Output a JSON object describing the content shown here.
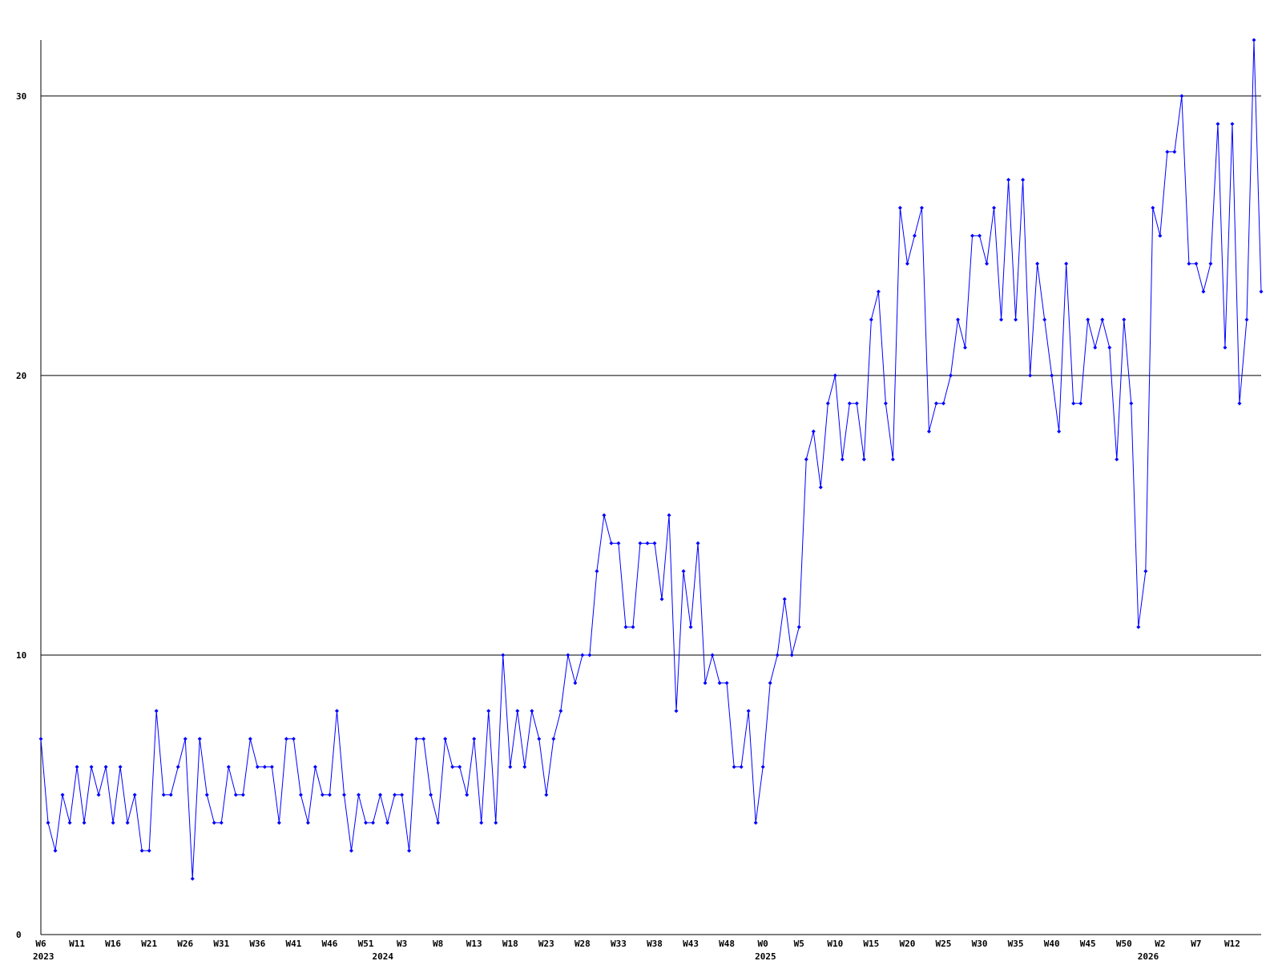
{
  "chart_data": {
    "type": "line",
    "categories": [
      "W6",
      null,
      null,
      null,
      null,
      "W11",
      null,
      null,
      null,
      null,
      "W16",
      null,
      null,
      null,
      null,
      "W21",
      null,
      null,
      null,
      null,
      "W26",
      null,
      null,
      null,
      null,
      "W31",
      null,
      null,
      null,
      null,
      "W36",
      null,
      null,
      null,
      null,
      "W41",
      null,
      null,
      null,
      null,
      "W46",
      null,
      null,
      null,
      null,
      "W51",
      null,
      null,
      null,
      null,
      "W3",
      null,
      null,
      null,
      null,
      "W8",
      null,
      null,
      null,
      null,
      "W13",
      null,
      null,
      null,
      null,
      "W18",
      null,
      null,
      null,
      null,
      "W23",
      null,
      null,
      null,
      null,
      "W28",
      null,
      null,
      null,
      null,
      "W33",
      null,
      null,
      null,
      null,
      "W38",
      null,
      null,
      null,
      null,
      "W43",
      null,
      null,
      null,
      null,
      "W48",
      null,
      null,
      null,
      null,
      "W0",
      null,
      null,
      null,
      null,
      "W5",
      null,
      null,
      null,
      null,
      "W10",
      null,
      null,
      null,
      null,
      "W15",
      null,
      null,
      null,
      null,
      "W20",
      null,
      null,
      null,
      null,
      "W25",
      null,
      null,
      null,
      null,
      "W30",
      null,
      null,
      null,
      null,
      "W35",
      null,
      null,
      null,
      null,
      "W40",
      null,
      null,
      null,
      null,
      "W45",
      null,
      null,
      null,
      null,
      "W50",
      null,
      null,
      null,
      null,
      "W2",
      null,
      null,
      null,
      null,
      "W7",
      null,
      null,
      null,
      null,
      "W12",
      null,
      null,
      null,
      null
    ],
    "category_years": [
      "2023",
      null,
      null,
      null,
      null,
      null,
      null,
      null,
      null,
      null,
      null,
      null,
      null,
      null,
      null,
      null,
      null,
      null,
      null,
      null,
      null,
      null,
      null,
      null,
      null,
      null,
      null,
      null,
      null,
      null,
      null,
      null,
      null,
      null,
      null,
      null,
      null,
      null,
      null,
      null,
      null,
      null,
      null,
      null,
      null,
      null,
      null,
      "2024",
      null,
      null,
      null,
      null,
      null,
      null,
      null,
      null,
      null,
      null,
      null,
      null,
      null,
      null,
      null,
      null,
      null,
      null,
      null,
      null,
      null,
      null,
      null,
      null,
      null,
      null,
      null,
      null,
      null,
      null,
      null,
      null,
      null,
      null,
      null,
      null,
      null,
      null,
      null,
      null,
      null,
      null,
      null,
      null,
      null,
      null,
      null,
      null,
      null,
      null,
      null,
      null,
      "2025",
      null,
      null,
      null,
      null,
      null,
      null,
      null,
      null,
      null,
      null,
      null,
      null,
      null,
      null,
      null,
      null,
      null,
      null,
      null,
      null,
      null,
      null,
      null,
      null,
      null,
      null,
      null,
      null,
      null,
      null,
      null,
      null,
      null,
      null,
      null,
      null,
      null,
      null,
      null,
      null,
      null,
      null,
      null,
      null,
      null,
      null,
      null,
      null,
      null,
      null,
      null,
      null,
      "2026",
      null,
      null,
      null,
      null,
      null,
      null,
      null,
      null,
      null,
      null,
      null,
      null,
      null,
      null,
      null,
      null
    ],
    "series": [
      {
        "color": "#0000ff",
        "values": [
          7,
          4,
          3,
          5,
          4,
          6,
          4,
          6,
          5,
          6,
          4,
          6,
          4,
          5,
          3,
          3,
          8,
          5,
          5,
          6,
          7,
          2,
          7,
          5,
          4,
          4,
          6,
          5,
          5,
          7,
          6,
          6,
          6,
          4,
          7,
          7,
          5,
          4,
          6,
          5,
          5,
          8,
          5,
          3,
          5,
          4,
          4,
          5,
          4,
          5,
          5,
          3,
          7,
          7,
          5,
          4,
          7,
          6,
          6,
          5,
          7,
          4,
          8,
          4,
          10,
          6,
          8,
          6,
          8,
          7,
          5,
          7,
          8,
          10,
          9,
          10,
          10,
          13,
          15,
          14,
          14,
          11,
          11,
          14,
          14,
          14,
          12,
          15,
          8,
          13,
          11,
          14,
          9,
          10,
          9,
          9,
          6,
          6,
          8,
          4,
          6,
          9,
          10,
          12,
          10,
          11,
          17,
          18,
          16,
          19,
          20,
          17,
          19,
          19,
          17,
          22,
          23,
          19,
          17,
          26,
          24,
          25,
          26,
          18,
          19,
          19,
          20,
          22,
          21,
          25,
          25,
          24,
          26,
          22,
          27,
          22,
          27,
          20,
          24,
          22,
          20,
          18,
          24,
          19,
          19,
          22,
          21,
          22,
          21,
          17,
          22,
          19,
          11,
          13,
          26,
          25,
          28,
          28,
          30,
          24,
          24,
          23,
          24,
          29,
          21,
          29,
          19,
          22,
          32,
          23
        ]
      }
    ],
    "ylim": [
      0,
      32
    ],
    "yticks": [
      0,
      10,
      20,
      30
    ],
    "grid": true
  }
}
